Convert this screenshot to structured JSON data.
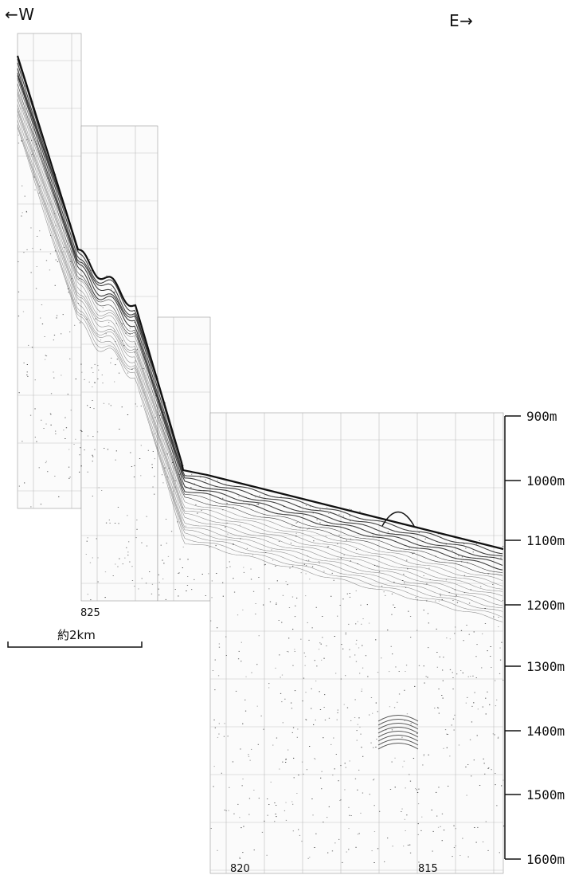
{
  "direction": {
    "west": "←W",
    "east": "E→"
  },
  "depth_axis": {
    "labels": [
      "900m",
      "1000m",
      "1100m",
      "1200m",
      "1300m",
      "1400m",
      "1500m",
      "1600m"
    ]
  },
  "shot_points": {
    "left": "825",
    "middle": "820",
    "right": "815"
  },
  "scale_bar": {
    "label": "約2km"
  },
  "colors": {
    "ink": "#111111",
    "grid": "#9a9a9a",
    "paper": "#ffffff"
  }
}
